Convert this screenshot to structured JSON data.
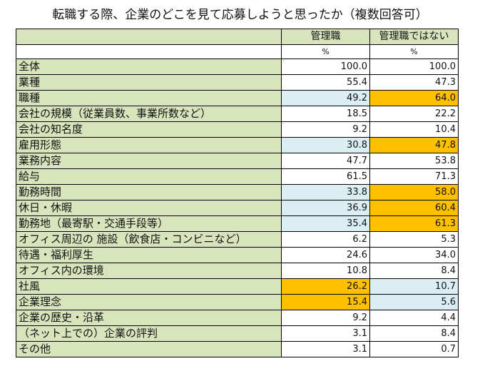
{
  "title": "転職する際、企業のどこを見て応募しようと思ったか（複数回答可）",
  "columns": {
    "manager": "管理職",
    "non_manager": "管理職ではない"
  },
  "unit": "%",
  "colors": {
    "label_bg": "#d8e4bc",
    "low_highlight": "#daeef3",
    "high_highlight": "#ffc000",
    "plain": "#ffffff"
  },
  "rows": [
    {
      "label": "全体",
      "manager": "100.0",
      "non_manager": "100.0",
      "manager_fill": "white",
      "non_manager_fill": "white"
    },
    {
      "label": "業種",
      "manager": "55.4",
      "non_manager": "47.3",
      "manager_fill": "white",
      "non_manager_fill": "white"
    },
    {
      "label": "職種",
      "manager": "49.2",
      "non_manager": "64.0",
      "manager_fill": "blue",
      "non_manager_fill": "orange"
    },
    {
      "label": "会社の規模（従業員数、事業所数など）",
      "manager": "18.5",
      "non_manager": "22.2",
      "manager_fill": "white",
      "non_manager_fill": "white"
    },
    {
      "label": "会社の知名度",
      "manager": "9.2",
      "non_manager": "10.4",
      "manager_fill": "white",
      "non_manager_fill": "white"
    },
    {
      "label": "雇用形態",
      "manager": "30.8",
      "non_manager": "47.8",
      "manager_fill": "blue",
      "non_manager_fill": "orange"
    },
    {
      "label": "業務内容",
      "manager": "47.7",
      "non_manager": "53.8",
      "manager_fill": "white",
      "non_manager_fill": "white"
    },
    {
      "label": "給与",
      "manager": "61.5",
      "non_manager": "71.3",
      "manager_fill": "white",
      "non_manager_fill": "white"
    },
    {
      "label": "勤務時間",
      "manager": "33.8",
      "non_manager": "58.0",
      "manager_fill": "blue",
      "non_manager_fill": "orange"
    },
    {
      "label": "休日・休暇",
      "manager": "36.9",
      "non_manager": "60.4",
      "manager_fill": "blue",
      "non_manager_fill": "orange"
    },
    {
      "label": "勤務地（最寄駅・交通手段等）",
      "manager": "35.4",
      "non_manager": "61.3",
      "manager_fill": "blue",
      "non_manager_fill": "orange"
    },
    {
      "label": "オフィス周辺の 施設（飲食店・コンビニなど）",
      "manager": "6.2",
      "non_manager": "5.3",
      "manager_fill": "white",
      "non_manager_fill": "white"
    },
    {
      "label": "待遇・福利厚生",
      "manager": "24.6",
      "non_manager": "34.0",
      "manager_fill": "white",
      "non_manager_fill": "white"
    },
    {
      "label": "オフィス内の環境",
      "manager": "10.8",
      "non_manager": "8.4",
      "manager_fill": "white",
      "non_manager_fill": "white"
    },
    {
      "label": "社風",
      "manager": "26.2",
      "non_manager": "10.7",
      "manager_fill": "orange",
      "non_manager_fill": "blue"
    },
    {
      "label": "企業理念",
      "manager": "15.4",
      "non_manager": "5.6",
      "manager_fill": "orange",
      "non_manager_fill": "blue"
    },
    {
      "label": "企業の歴史・沿革",
      "manager": "9.2",
      "non_manager": "4.4",
      "manager_fill": "white",
      "non_manager_fill": "white"
    },
    {
      "label": "（ネット上での）企業の評判",
      "manager": "3.1",
      "non_manager": "8.4",
      "manager_fill": "white",
      "non_manager_fill": "white"
    },
    {
      "label": "その他",
      "manager": "3.1",
      "non_manager": "0.7",
      "manager_fill": "white",
      "non_manager_fill": "white"
    }
  ]
}
